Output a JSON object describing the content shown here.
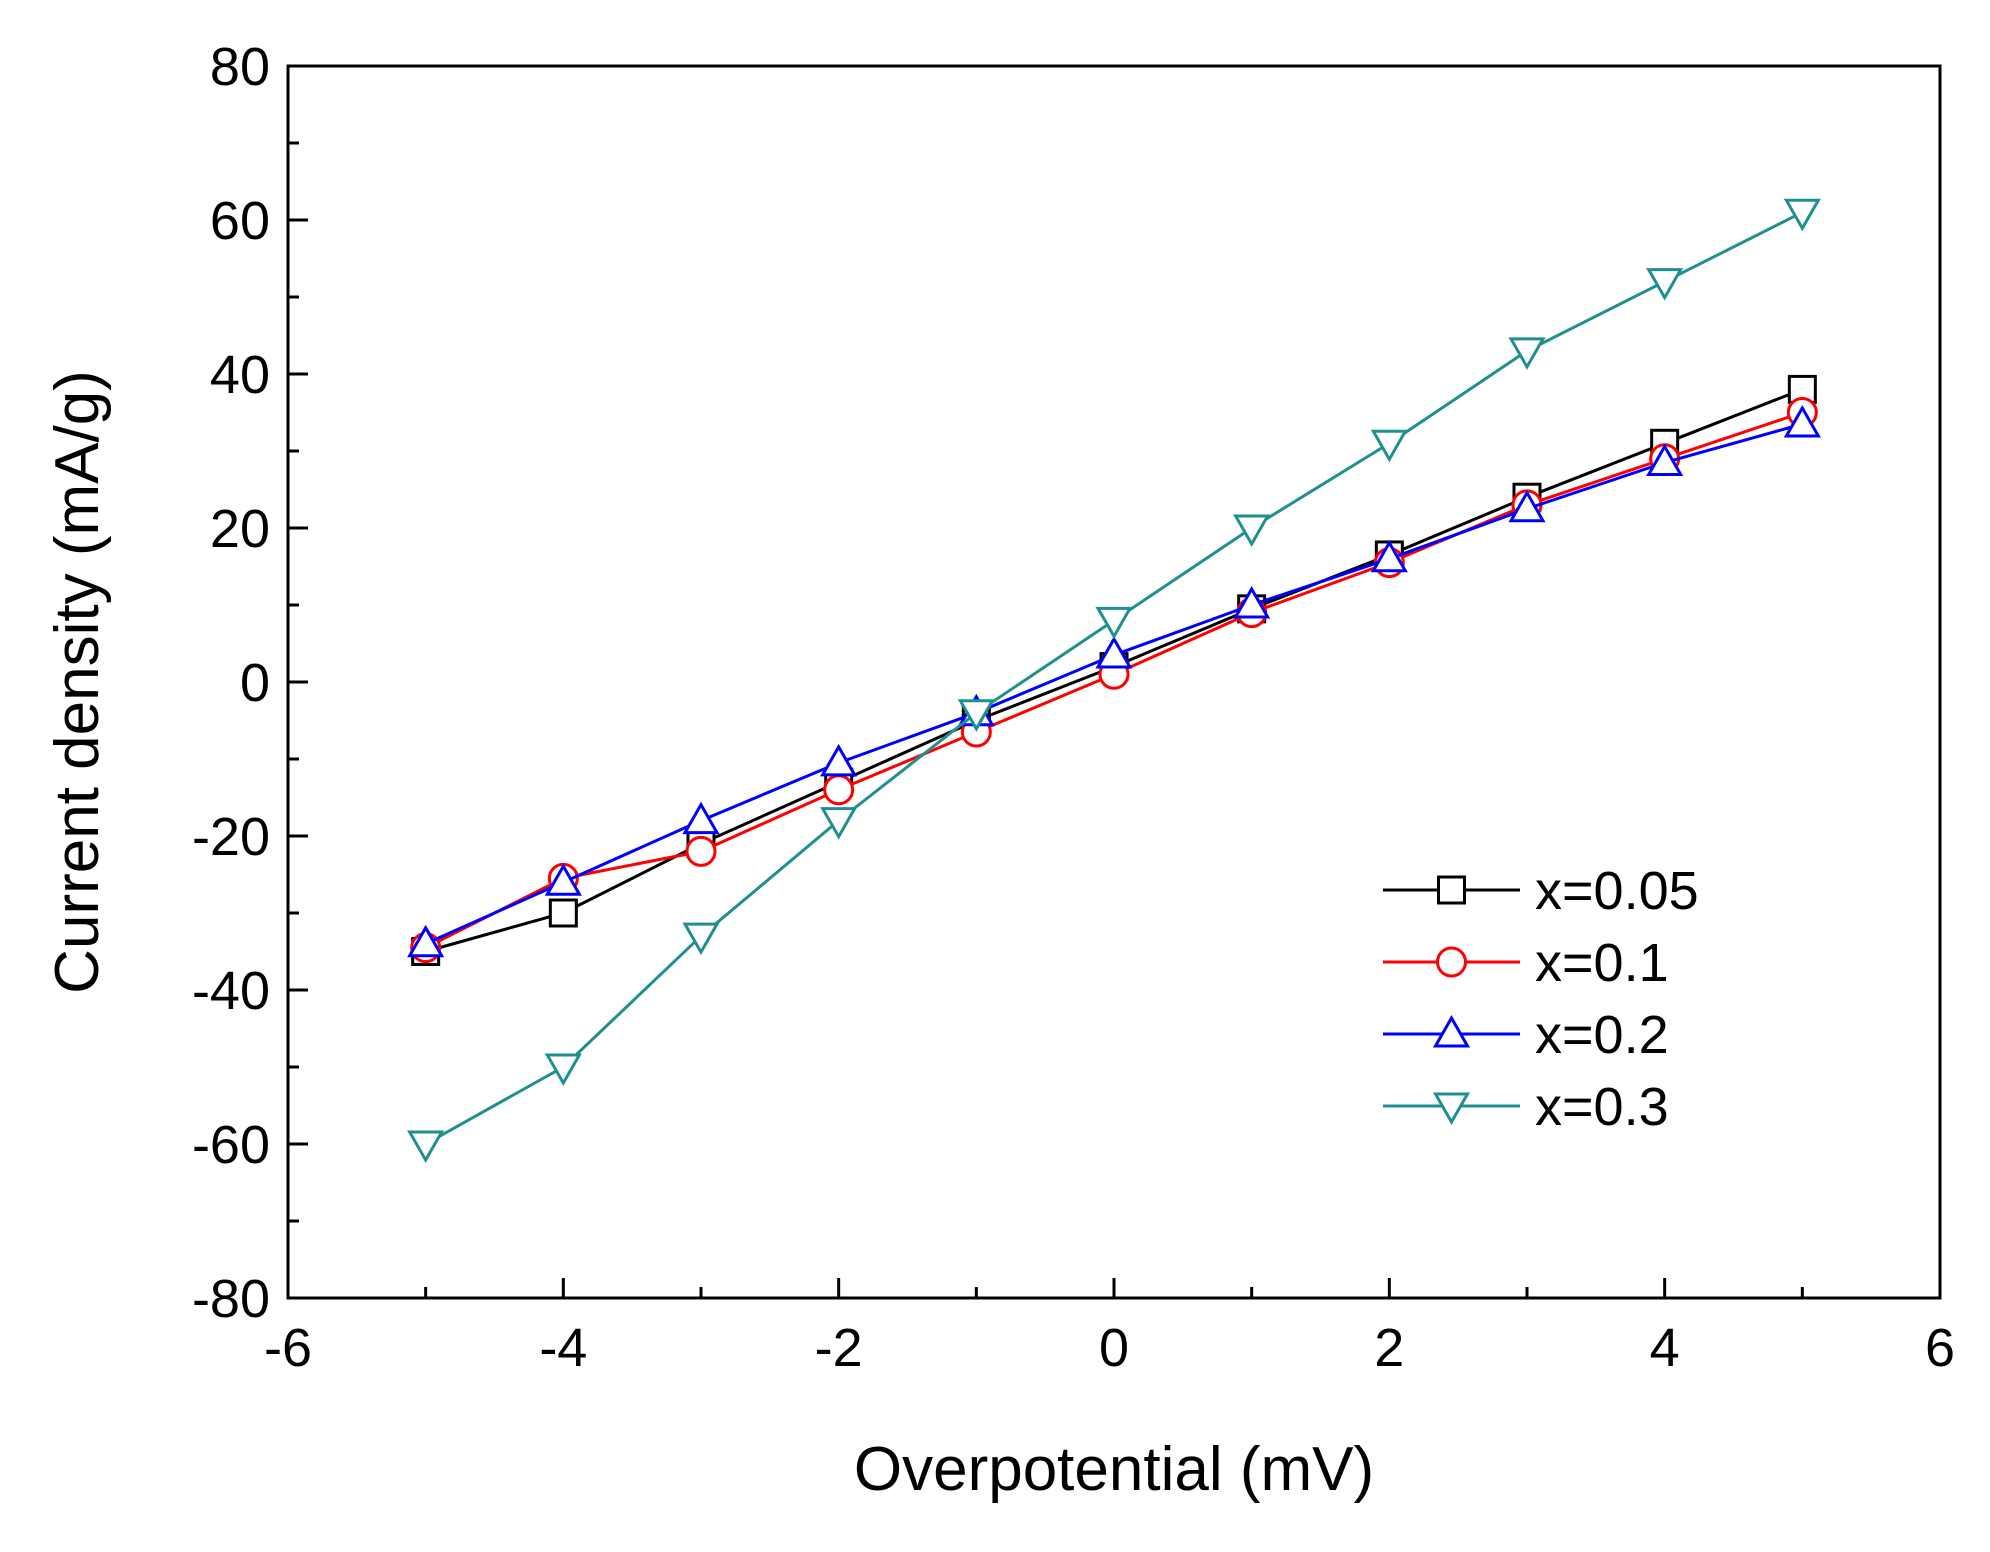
{
  "chart_data": {
    "type": "line",
    "xlabel": "Overpotential (mV)",
    "ylabel": "Current density (mA/g)",
    "xlim": [
      -6,
      6
    ],
    "ylim": [
      -80,
      80
    ],
    "xticks": [
      -6,
      -4,
      -2,
      0,
      2,
      4,
      6
    ],
    "yticks": [
      -80,
      -60,
      -40,
      -20,
      0,
      20,
      40,
      60,
      80
    ],
    "x": [
      -5,
      -4,
      -3,
      -2,
      -1,
      0,
      1,
      2,
      3,
      4,
      5
    ],
    "legend_position": "bottom-right",
    "series": [
      {
        "name": "x=0.05",
        "marker": "square",
        "color": "#000000",
        "values": [
          -35,
          -30,
          -21,
          -13,
          -5,
          2,
          9.5,
          16.5,
          24,
          31,
          38
        ]
      },
      {
        "name": "x=0.1",
        "marker": "circle",
        "color": "#ff0000",
        "values": [
          -34.5,
          -25.5,
          -22,
          -14,
          -6.5,
          1,
          9,
          15.5,
          23,
          29,
          35
        ]
      },
      {
        "name": "x=0.2",
        "marker": "triangle-up",
        "color": "#0000ff",
        "values": [
          -34,
          -26,
          -18,
          -10.5,
          -4,
          3.5,
          10,
          16,
          22.5,
          28.5,
          33.5
        ]
      },
      {
        "name": "x=0.3",
        "marker": "triangle-down",
        "color": "#1f8f8f",
        "values": [
          -60,
          -50,
          -33,
          -18,
          -4,
          8,
          20,
          31,
          43,
          52,
          61
        ]
      }
    ]
  }
}
